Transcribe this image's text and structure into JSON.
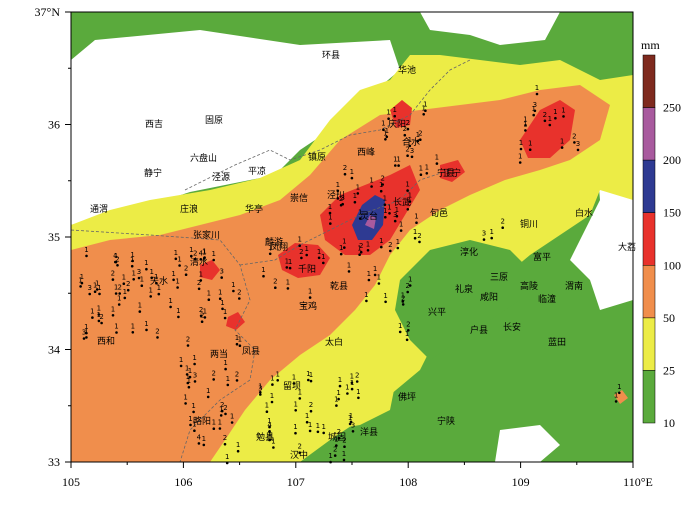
{
  "map": {
    "axes": {
      "x_ticks": [
        "105",
        "106",
        "107",
        "108",
        "109",
        "110°E"
      ],
      "y_ticks": [
        "37°N",
        "36",
        "35",
        "34",
        "33"
      ]
    },
    "colorbar": {
      "unit": "mm",
      "levels": [
        "10",
        "25",
        "50",
        "100",
        "150",
        "200",
        "250"
      ],
      "colors": [
        "#5aaa3c",
        "#ecec46",
        "#f08e4c",
        "#e8322c",
        "#2e3a92",
        "#a85a9e",
        "#7e2a1e"
      ]
    },
    "cities": [
      {
        "name": "环县"
      },
      {
        "name": "华池"
      },
      {
        "name": "西吉"
      },
      {
        "name": "固原"
      },
      {
        "name": "庆阳"
      },
      {
        "name": "合水"
      },
      {
        "name": "六盘山"
      },
      {
        "name": "镇原"
      },
      {
        "name": "西峰"
      },
      {
        "name": "静宁"
      },
      {
        "name": "泾源"
      },
      {
        "name": "平凉"
      },
      {
        "name": "宁县"
      },
      {
        "name": "正宁"
      },
      {
        "name": "崇信"
      },
      {
        "name": "泾川"
      },
      {
        "name": "通渭"
      },
      {
        "name": "庄浪"
      },
      {
        "name": "华亭"
      },
      {
        "name": "灵台"
      },
      {
        "name": "长武"
      },
      {
        "name": "旬邑"
      },
      {
        "name": "铜川"
      },
      {
        "name": "白水"
      },
      {
        "name": "张家川"
      },
      {
        "name": "麟游"
      },
      {
        "name": "淳化"
      },
      {
        "name": "大荔"
      },
      {
        "name": "清水"
      },
      {
        "name": "千阳"
      },
      {
        "name": "富平"
      },
      {
        "name": "三原"
      },
      {
        "name": "天水"
      },
      {
        "name": "宝鸡"
      },
      {
        "name": "凤翔"
      },
      {
        "name": "乾县"
      },
      {
        "name": "高陵"
      },
      {
        "name": "临潼"
      },
      {
        "name": "渭南"
      },
      {
        "name": "咸阳"
      },
      {
        "name": "礼泉"
      },
      {
        "name": "兴平"
      },
      {
        "name": "西和"
      },
      {
        "name": "户县"
      },
      {
        "name": "长安"
      },
      {
        "name": "两当"
      },
      {
        "name": "凤县"
      },
      {
        "name": "太白"
      },
      {
        "name": "蓝田"
      },
      {
        "name": "留坝"
      },
      {
        "name": "佛坪"
      },
      {
        "name": "略阳"
      },
      {
        "name": "勉县"
      },
      {
        "name": "城固"
      },
      {
        "name": "洋县"
      },
      {
        "name": "宁陕"
      },
      {
        "name": "汉中"
      }
    ],
    "station_values": [
      "1",
      "2",
      "3",
      "4"
    ]
  }
}
